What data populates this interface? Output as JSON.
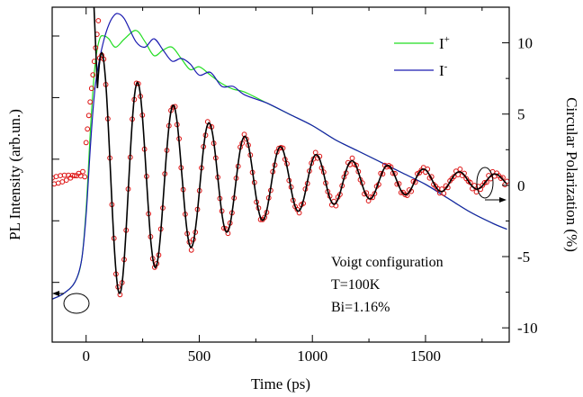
{
  "chart_data": {
    "type": "line",
    "title": "",
    "xlabel": "Time (ps)",
    "ylabel_left": "PL Intensity (arb.un.)",
    "ylabel_right": "Circular Polarization (%)",
    "xlim": [
      -150,
      1870
    ],
    "x_ticks": [
      0,
      500,
      1000,
      1500
    ],
    "y_right_lim": [
      -11,
      12.5
    ],
    "y_right_ticks": [
      10,
      5,
      0,
      -5,
      -10
    ],
    "y_left_ticks_unlabeled": [
      0.12,
      0.34,
      0.56,
      0.78,
      1.0
    ],
    "grid": false,
    "legend_position": "top-right",
    "legend": [
      {
        "label": "I",
        "sup": "+",
        "color": "#22dd22"
      },
      {
        "label": "I",
        "sup": "-",
        "color": "#1a1ab0"
      }
    ],
    "annotation_lines": [
      "Voigt configuration",
      "T=100K",
      "Bi=1.16%"
    ],
    "series": [
      {
        "name": "I+",
        "axis": "left",
        "color": "#22dd22",
        "x": [
          -150,
          -100,
          -50,
          -20,
          0,
          20,
          40,
          60,
          80,
          100,
          130,
          170,
          220,
          260,
          300,
          340,
          380,
          420,
          460,
          500,
          550,
          600,
          650,
          700,
          800,
          900,
          1000,
          1100,
          1200,
          1300,
          1400,
          1500,
          1600,
          1700,
          1800,
          1860
        ],
        "y": [
          0.06,
          0.08,
          0.12,
          0.2,
          0.38,
          0.68,
          0.9,
          0.99,
          1.0,
          0.99,
          0.96,
          0.99,
          1.02,
          0.98,
          0.93,
          0.95,
          0.96,
          0.92,
          0.88,
          0.89,
          0.86,
          0.83,
          0.81,
          0.8,
          0.76,
          0.72,
          0.68,
          0.63,
          0.59,
          0.55,
          0.51,
          0.47,
          0.42,
          0.37,
          0.33,
          0.31
        ]
      },
      {
        "name": "I-",
        "axis": "left",
        "color": "#1a1ab0",
        "x": [
          -150,
          -100,
          -50,
          -20,
          0,
          20,
          40,
          60,
          80,
          100,
          120,
          140,
          170,
          220,
          260,
          300,
          340,
          380,
          420,
          460,
          500,
          550,
          600,
          650,
          700,
          800,
          900,
          1000,
          1100,
          1200,
          1300,
          1400,
          1500,
          1600,
          1700,
          1800,
          1860
        ],
        "y": [
          0.06,
          0.08,
          0.12,
          0.2,
          0.36,
          0.62,
          0.82,
          0.92,
          0.99,
          1.04,
          1.07,
          1.08,
          1.06,
          0.98,
          0.96,
          0.99,
          0.95,
          0.91,
          0.92,
          0.9,
          0.86,
          0.87,
          0.82,
          0.82,
          0.79,
          0.76,
          0.72,
          0.68,
          0.63,
          0.59,
          0.55,
          0.51,
          0.47,
          0.42,
          0.37,
          0.33,
          0.31
        ]
      },
      {
        "name": "polarization data",
        "axis": "right",
        "marker": "open-circle",
        "color": "#dd1111",
        "model": "damped_cosine",
        "baseline": [
          {
            "x": -150,
            "y": 0.3
          },
          {
            "x": -20,
            "y": 0.8
          }
        ],
        "rise": [
          {
            "x": 0,
            "y": 3
          },
          {
            "x": 30,
            "y": 9
          }
        ],
        "period_ps": 158,
        "t0_ps": 70,
        "amplitude_start": 9,
        "decay_ps": 600,
        "offset": 0.3,
        "x_end": 1860
      },
      {
        "name": "fit",
        "axis": "right",
        "color": "#000000",
        "model": "damped_cosine",
        "period_ps": 158,
        "t0_ps": 70,
        "amplitude_start": 9,
        "decay_ps": 600,
        "offset": 0.3,
        "x_start": 50,
        "x_end": 1860
      }
    ]
  }
}
